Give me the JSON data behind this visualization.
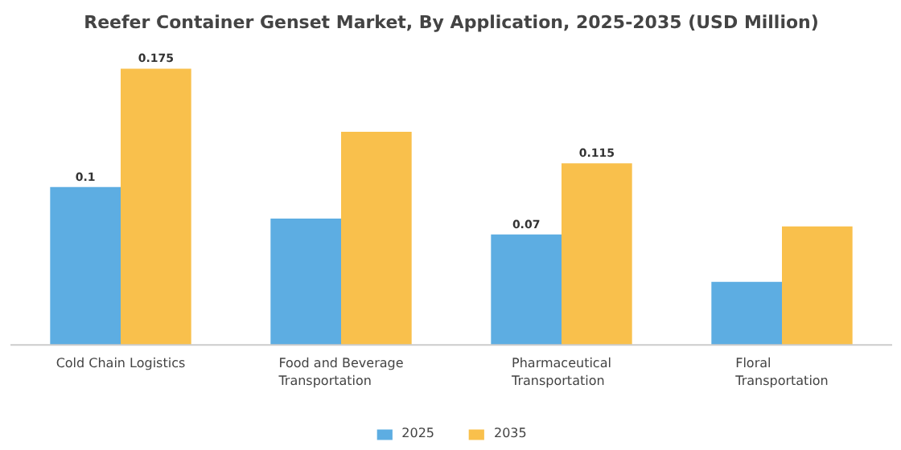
{
  "chart_data": {
    "type": "bar",
    "title": "Reefer Container Genset Market, By Application, 2025-2035 (USD Million)",
    "categories": [
      "Cold Chain Logistics",
      "Food and Beverage Transportation",
      "Pharmaceutical Transportation",
      "Floral Transportation"
    ],
    "series": [
      {
        "name": "2025",
        "color": "#5dade2",
        "values": [
          0.1,
          0.08,
          0.07,
          0.04
        ],
        "value_labels": [
          "0.1",
          null,
          "0.07",
          null
        ]
      },
      {
        "name": "2035",
        "color": "#f9c04c",
        "values": [
          0.175,
          0.135,
          0.115,
          0.075
        ],
        "value_labels": [
          "0.175",
          null,
          "0.115",
          null
        ]
      }
    ],
    "legend": "bottom"
  }
}
